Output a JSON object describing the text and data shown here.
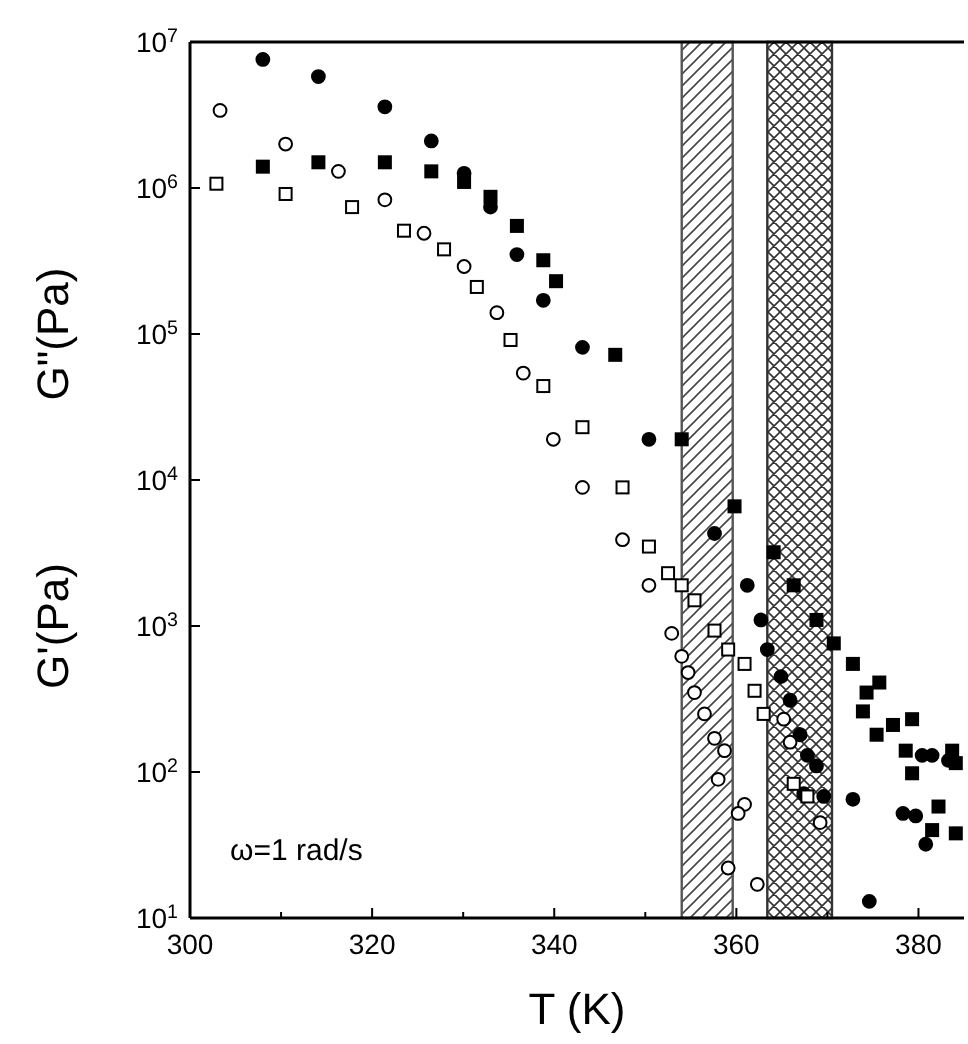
{
  "chart_data": {
    "type": "scatter",
    "xlabel": "T (K)",
    "ylabel": "G'(Pa)",
    "log": "y",
    "grid": false,
    "xlim": [
      300,
      385
    ],
    "ylim": [
      10,
      10000000
    ],
    "xticks": [
      300,
      {
        "value": 310,
        "label": null
      },
      320,
      {
        "value": 330,
        "label": null
      },
      340,
      {
        "value": 350,
        "label": null
      },
      360,
      {
        "value": 370,
        "label": null
      },
      380
    ],
    "yticks": [
      {
        "value": 10,
        "label": "10$^{1}$"
      },
      {
        "value": 100,
        "label": "10$^{2}$"
      },
      {
        "value": 1000,
        "label": "10$^{3}$"
      },
      {
        "value": 10000,
        "label": "10$^{4}$"
      },
      {
        "value": 100000,
        "label": "10$^{5}$"
      },
      {
        "value": 1000000,
        "label": "10$^{6}$"
      },
      {
        "value": 10000000,
        "label": "10$^{7}$"
      }
    ],
    "annotations": [
      "G\"(Pa)",
      "ω=1 rad/s"
    ],
    "bands": [
      {
        "axis": "x",
        "from": 354,
        "to": 359.6,
        "color": "#555555"
      },
      {
        "axis": "x",
        "from": 363.4,
        "to": 370.5,
        "color": "#333333"
      }
    ],
    "series": [
      {
        "marker": "circle",
        "color": "#000000",
        "x": [
          308,
          314.1,
          321.4,
          326.5,
          330.1,
          333,
          335.9,
          338.8,
          343.1,
          350.4,
          357.6,
          361.2,
          362.7,
          363.4,
          364.9,
          365.9,
          367,
          367.8,
          368.8,
          367.4,
          369.6,
          372.8,
          374.6,
          378.3,
          379.7,
          380.8,
          380.4,
          381.5,
          383.3
        ],
        "values": [
          7600000,
          5800000,
          3600000,
          2100000,
          1260000,
          740000,
          350000,
          170000,
          81000,
          19000,
          4300,
          1900,
          1100,
          690,
          450,
          310,
          180,
          130,
          110,
          71,
          68,
          65,
          13,
          52,
          50,
          32,
          130,
          130,
          120
        ]
      },
      {
        "marker": "square",
        "color": "#000000",
        "x": [
          308,
          314.1,
          321.4,
          326.5,
          330.1,
          333,
          335.9,
          338.8,
          340.2,
          346.7,
          354,
          359.8,
          364.1,
          366.3,
          368.8,
          370.7,
          372.8,
          374.3,
          375.7,
          373.9,
          375.4,
          377.2,
          379.3,
          378.6,
          379.3,
          382.2,
          381.5,
          384.1,
          384.1,
          383.7
        ],
        "values": [
          1400000,
          1500000,
          1500000,
          1300000,
          1100000,
          870000,
          550000,
          320000,
          230000,
          72000,
          19000,
          6600,
          3200,
          1900,
          1100,
          760,
          550,
          350,
          410,
          260,
          180,
          210,
          230,
          140,
          98,
          58,
          40,
          38,
          115,
          140
        ]
      },
      {
        "marker": "circle",
        "color": "#000000",
        "x": [
          303.3,
          310.5,
          316.3,
          321.4,
          325.7,
          330.1,
          333.7,
          336.6,
          339.9,
          343.1,
          347.5,
          350.4,
          352.9,
          354,
          354.7,
          355.4,
          356.5,
          357.6,
          358.7,
          358,
          359.1,
          360.9,
          360.2,
          362.3,
          365.2,
          365.9,
          369.2
        ],
        "values": [
          3400000,
          2000000,
          1300000,
          830000,
          490000,
          290000,
          140000,
          54000,
          19000,
          8900,
          3900,
          1900,
          890,
          620,
          480,
          350,
          250,
          170,
          140,
          89,
          22,
          60,
          52,
          17,
          230,
          160,
          45
        ]
      },
      {
        "marker": "square",
        "color": "#000000",
        "x": [
          302.9,
          310.5,
          317.8,
          323.5,
          327.9,
          331.5,
          335.2,
          338.8,
          343.1,
          347.5,
          350.4,
          352.5,
          354,
          355.4,
          357.6,
          359.1,
          360.9,
          362,
          363,
          366.3,
          367.8
        ],
        "values": [
          1070000,
          910000,
          740000,
          510000,
          380000,
          210000,
          91000,
          44000,
          23000,
          8900,
          3500,
          2300,
          1900,
          1500,
          930,
          690,
          550,
          360,
          250,
          83,
          68
        ]
      }
    ]
  }
}
